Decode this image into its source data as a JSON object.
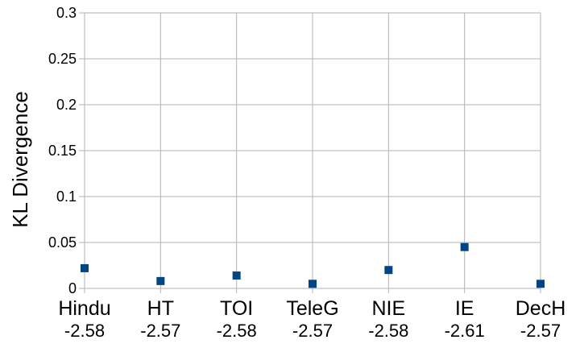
{
  "chart_data": {
    "type": "scatter",
    "title": "",
    "xlabel": "",
    "ylabel": "KL Divergence",
    "categories": [
      "Hindu",
      "HT",
      "TOI",
      "TeleG",
      "NIE",
      "IE",
      "DecH"
    ],
    "category_values": [
      "-2.58",
      "-2.57",
      "-2.58",
      "-2.57",
      "-2.58",
      "-2.61",
      "-2.57"
    ],
    "values": [
      0.022,
      0.008,
      0.014,
      0.005,
      0.02,
      0.045,
      0.005
    ],
    "ylim": [
      0,
      0.3
    ],
    "yticks": [
      "0",
      "0.05",
      "0.1",
      "0.15",
      "0.2",
      "0.25",
      "0.3"
    ],
    "grid": true,
    "legend": "none",
    "colors": {
      "marker": "#004586",
      "grid": "#b3b3b3",
      "axis": "#b3b3b3"
    }
  }
}
